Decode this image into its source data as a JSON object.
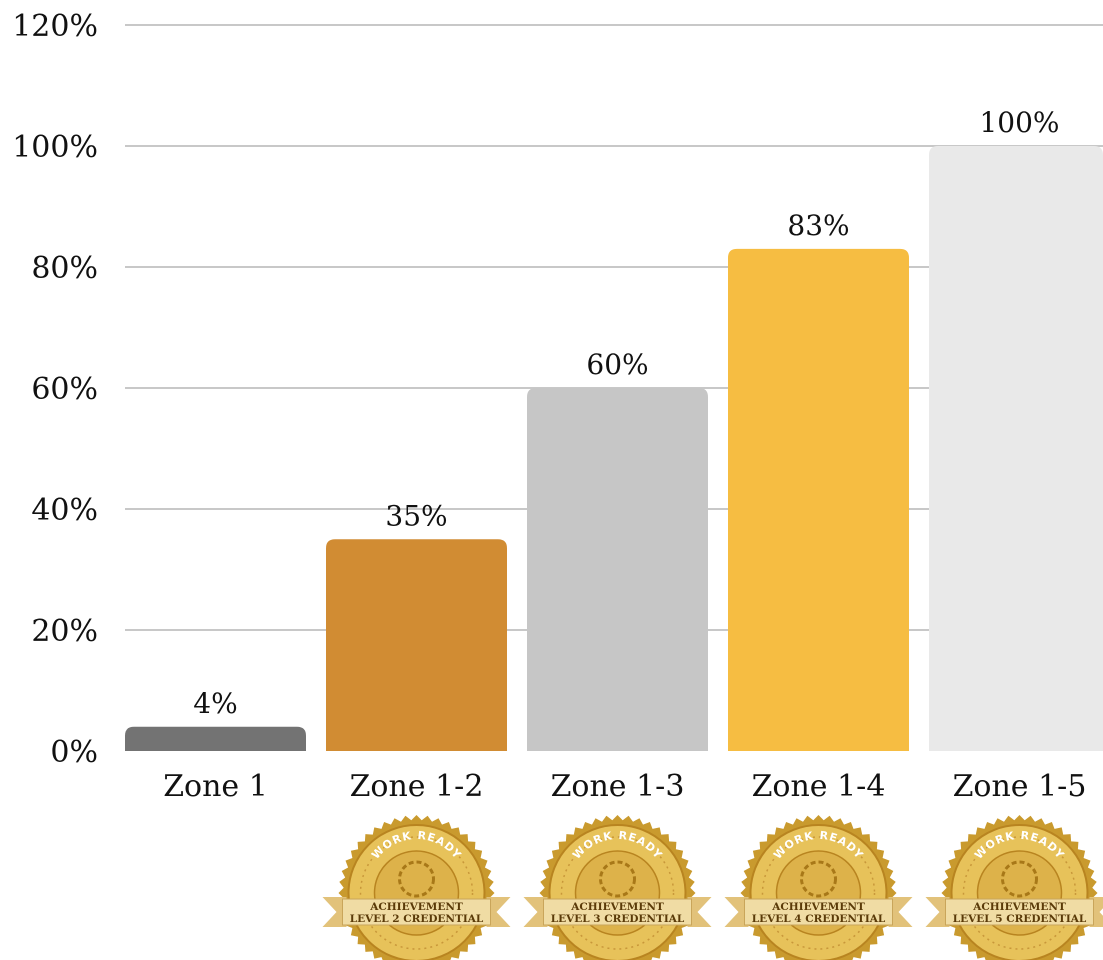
{
  "chart_data": {
    "type": "bar",
    "categories": [
      "Zone 1",
      "Zone 1-2",
      "Zone 1-3",
      "Zone 1-4",
      "Zone 1-5"
    ],
    "values": [
      4,
      35,
      60,
      83,
      100
    ],
    "data_labels": [
      "4%",
      "35%",
      "60%",
      "83%",
      "100%"
    ],
    "ylim": [
      0,
      120
    ],
    "y_ticks": [
      0,
      20,
      40,
      60,
      80,
      100,
      120
    ],
    "y_tick_labels": [
      "0%",
      "20%",
      "40%",
      "60%",
      "80%",
      "100%",
      "120%"
    ],
    "grid": true,
    "bar_colors": [
      "#737373",
      "#d18c33",
      "#c6c6c6",
      "#f6bd42",
      "#e9e9e9"
    ],
    "title": "",
    "xlabel": "",
    "ylabel": ""
  },
  "badges": [
    {
      "category": "Zone 1-2",
      "top_text": "WORK READY",
      "line1": "ACHIEVEMENT",
      "line2": "LEVEL 2 CREDENTIAL"
    },
    {
      "category": "Zone 1-3",
      "top_text": "WORK READY",
      "line1": "ACHIEVEMENT",
      "line2": "LEVEL 3 CREDENTIAL"
    },
    {
      "category": "Zone 1-4",
      "top_text": "WORK READY",
      "line1": "ACHIEVEMENT",
      "line2": "LEVEL 4 CREDENTIAL"
    },
    {
      "category": "Zone 1-5",
      "top_text": "WORK READY",
      "line1": "ACHIEVEMENT",
      "line2": "LEVEL 5 CREDENTIAL"
    }
  ]
}
